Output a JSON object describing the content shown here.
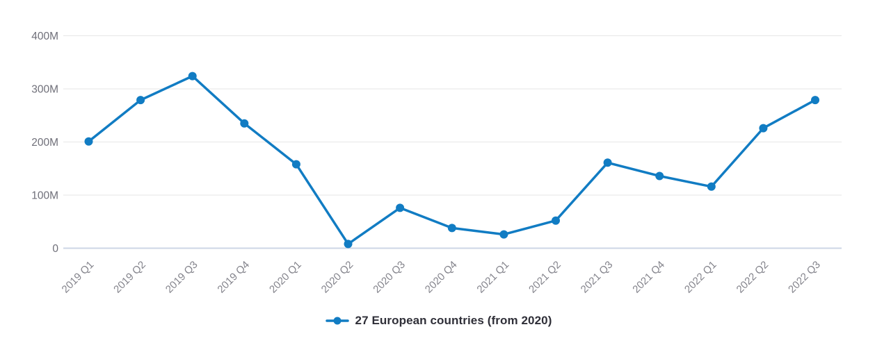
{
  "chart_data": {
    "type": "line",
    "title": "",
    "xlabel": "",
    "ylabel": "",
    "unit": "M (millions)",
    "categories": [
      "2019 Q1",
      "2019 Q2",
      "2019 Q3",
      "2019 Q4",
      "2020 Q1",
      "2020 Q2",
      "2020 Q3",
      "2020 Q4",
      "2021 Q1",
      "2021 Q2",
      "2021 Q3",
      "2021 Q4",
      "2022 Q1",
      "2022 Q2",
      "2022 Q3"
    ],
    "series": [
      {
        "name": "27 European countries (from 2020)",
        "values": [
          201,
          279,
          324,
          235,
          158,
          8,
          76,
          38,
          26,
          52,
          161,
          136,
          116,
          226,
          279
        ],
        "color": "#117cc3"
      }
    ],
    "ylim": [
      0,
      400
    ],
    "y_tick_values": [
      0,
      100,
      200,
      300,
      400
    ],
    "y_tick_labels": [
      "0",
      "100M",
      "200M",
      "300M",
      "400M"
    ],
    "grid": true,
    "legend_position": "bottom-center",
    "x_label_rotation": -45
  },
  "colors": {
    "series_line": "#117cc3",
    "marker_fill": "#117cc3",
    "gridline": "#e6e6e6",
    "zero_axis_line": "#ccd6e6",
    "y_tick_text": "#6f6f79",
    "x_tick_text": "#84848c",
    "legend_text": "#2f2f38",
    "background": "#ffffff"
  }
}
